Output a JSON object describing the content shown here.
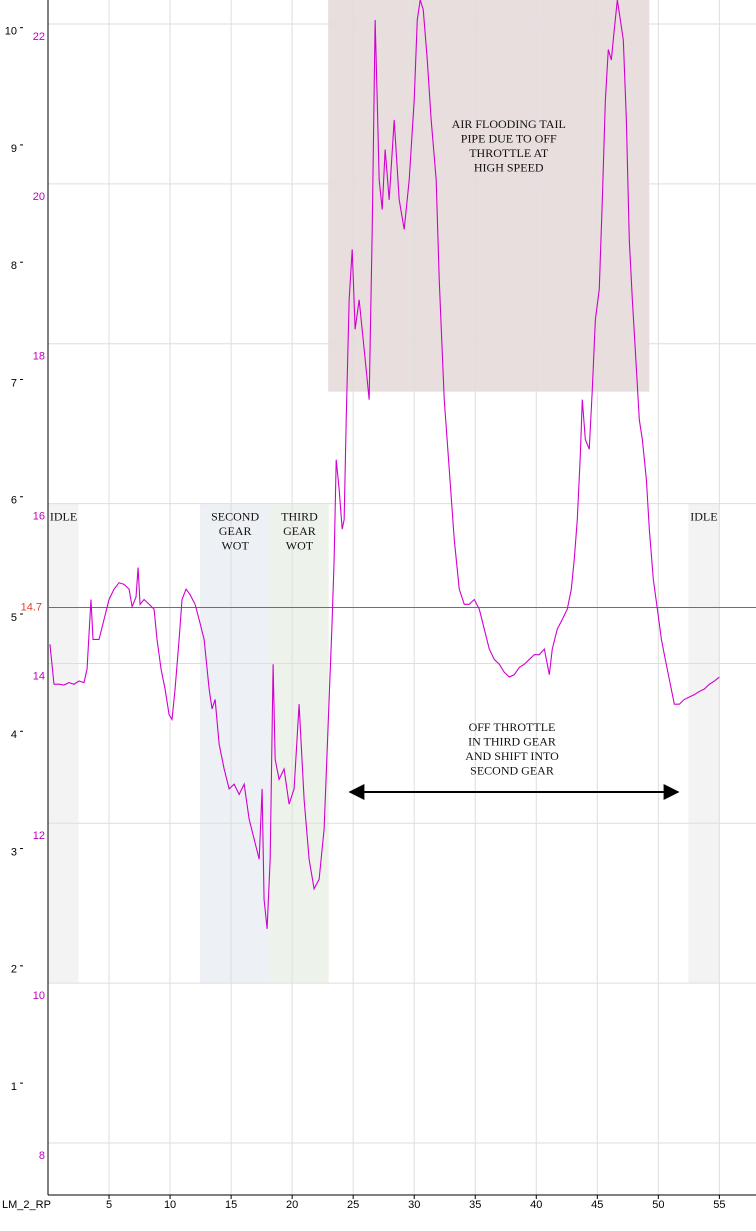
{
  "chart_data": {
    "type": "line",
    "x_label": "LM_2_RP",
    "color": "#d000d0",
    "xlim": [
      0,
      58
    ],
    "xticks": [
      5,
      10,
      15,
      20,
      25,
      30,
      35,
      40,
      45,
      50,
      55
    ],
    "ylim": [
      7.35,
      22.3
    ],
    "yticks": [
      8,
      10,
      12,
      14,
      16,
      18,
      20,
      22
    ],
    "y2lim": [
      0.08,
      10.27
    ],
    "y2ticks": [
      1,
      2,
      3,
      4,
      5,
      6,
      7,
      8,
      9,
      10
    ],
    "grid": true,
    "reference": {
      "value": 14.7,
      "color": "#e8402a"
    },
    "regions": [
      {
        "x": [
          0.05,
          2.5
        ],
        "y": [
          10,
          16
        ],
        "color": "#f3f3f3",
        "text": [
          "IDLE"
        ]
      },
      {
        "x": [
          12.46,
          18.2
        ],
        "y": [
          10,
          16
        ],
        "color": "#edf0f4",
        "text": [
          "SECOND",
          "GEAR",
          "WOT"
        ]
      },
      {
        "x": [
          18.2,
          23.0
        ],
        "y": [
          10,
          16
        ],
        "color": "#edf3ea",
        "text": [
          "THIRD",
          "GEAR",
          "WOT"
        ]
      },
      {
        "x": [
          22.95,
          49.26
        ],
        "y": [
          17.4,
          22.3
        ],
        "color": "#e8dedd",
        "text": [
          "AIR FLOODING TAIL",
          "PIPE DUE TO OFF",
          "THROTTLE AT",
          "HIGH SPEED"
        ]
      },
      {
        "x": [
          52.46,
          55.0
        ],
        "y": [
          10,
          16
        ],
        "color": "#f3f3f3",
        "text": [
          "IDLE"
        ]
      }
    ],
    "note": [
      "OFF THROTTLE",
      "IN THIRD GEAR",
      "AND SHIFT INTO",
      "SECOND GEAR"
    ],
    "x": [
      0.16,
      0.49,
      0.9,
      1.31,
      1.72,
      2.13,
      2.54,
      2.95,
      3.2,
      3.52,
      3.69,
      4.18,
      4.59,
      5.0,
      5.41,
      5.82,
      6.23,
      6.64,
      6.89,
      7.21,
      7.38,
      7.54,
      7.87,
      8.28,
      8.69,
      8.93,
      9.26,
      9.59,
      9.92,
      10.16,
      10.41,
      10.74,
      10.98,
      11.31,
      11.64,
      12.05,
      12.38,
      12.79,
      13.2,
      13.44,
      13.69,
      14.02,
      14.43,
      14.84,
      15.25,
      15.66,
      16.07,
      16.48,
      16.89,
      17.3,
      17.54,
      17.7,
      17.95,
      18.2,
      18.44,
      18.61,
      18.93,
      19.34,
      19.75,
      20.16,
      20.57,
      20.98,
      21.39,
      21.8,
      22.21,
      22.62,
      23.03,
      23.28,
      23.44,
      23.61,
      23.85,
      24.1,
      24.26,
      24.43,
      24.67,
      24.92,
      25.16,
      25.49,
      25.9,
      26.31,
      26.56,
      26.8,
      26.97,
      27.13,
      27.38,
      27.62,
      27.95,
      28.36,
      28.77,
      29.18,
      29.59,
      30.0,
      30.25,
      30.49,
      30.74,
      31.07,
      31.39,
      31.8,
      32.05,
      32.46,
      32.87,
      33.28,
      33.69,
      34.1,
      34.51,
      34.92,
      35.33,
      35.74,
      36.15,
      36.56,
      36.97,
      37.38,
      37.79,
      38.2,
      38.61,
      39.02,
      39.43,
      39.84,
      40.25,
      40.66,
      41.07,
      41.31,
      41.72,
      42.13,
      42.54,
      42.87,
      43.11,
      43.36,
      43.61,
      43.77,
      44.02,
      44.34,
      44.59,
      44.84,
      45.16,
      45.41,
      45.66,
      45.9,
      46.15,
      46.39,
      46.64,
      46.89,
      47.13,
      47.38,
      47.62,
      47.87,
      48.11,
      48.44,
      48.69,
      49.02,
      49.26,
      49.59,
      49.92,
      50.25,
      50.57,
      50.9,
      51.31,
      51.72,
      52.13,
      52.54,
      52.95,
      53.36,
      53.77,
      54.18,
      54.59,
      55.0
    ],
    "values": [
      14.24,
      13.74,
      13.74,
      13.73,
      13.76,
      13.74,
      13.78,
      13.76,
      13.93,
      14.8,
      14.3,
      14.3,
      14.55,
      14.8,
      14.93,
      15.01,
      14.99,
      14.93,
      14.71,
      14.83,
      15.2,
      14.74,
      14.8,
      14.74,
      14.68,
      14.3,
      13.93,
      13.68,
      13.36,
      13.3,
      13.68,
      14.3,
      14.8,
      14.93,
      14.86,
      14.74,
      14.55,
      14.3,
      13.68,
      13.43,
      13.55,
      12.99,
      12.68,
      12.43,
      12.49,
      12.36,
      12.49,
      12.05,
      11.8,
      11.55,
      12.43,
      11.05,
      10.68,
      11.55,
      13.99,
      12.8,
      12.55,
      12.68,
      12.24,
      12.43,
      13.49,
      12.3,
      11.55,
      11.18,
      11.3,
      11.93,
      13.55,
      14.55,
      15.3,
      16.55,
      16.18,
      15.68,
      15.8,
      17.05,
      18.55,
      19.18,
      18.18,
      18.55,
      17.93,
      17.3,
      19.43,
      22.05,
      21.05,
      20.05,
      19.68,
      20.43,
      19.8,
      20.8,
      19.8,
      19.43,
      20.05,
      21.05,
      22.05,
      22.3,
      22.18,
      21.55,
      20.8,
      20.05,
      18.8,
      17.3,
      16.43,
      15.55,
      14.93,
      14.74,
      14.74,
      14.8,
      14.68,
      14.43,
      14.18,
      14.05,
      13.99,
      13.89,
      13.83,
      13.86,
      13.95,
      13.99,
      14.05,
      14.11,
      14.11,
      14.18,
      13.86,
      14.18,
      14.43,
      14.55,
      14.68,
      14.93,
      15.3,
      15.8,
      16.61,
      17.3,
      16.8,
      16.68,
      17.43,
      18.3,
      18.68,
      19.8,
      21.05,
      21.68,
      21.55,
      21.93,
      22.3,
      22.05,
      21.8,
      20.8,
      19.3,
      18.55,
      17.93,
      17.05,
      16.8,
      16.3,
      15.68,
      15.05,
      14.68,
      14.3,
      14.05,
      13.8,
      13.49,
      13.49,
      13.55,
      13.58,
      13.61,
      13.65,
      13.68,
      13.74,
      13.78,
      13.83
    ]
  }
}
